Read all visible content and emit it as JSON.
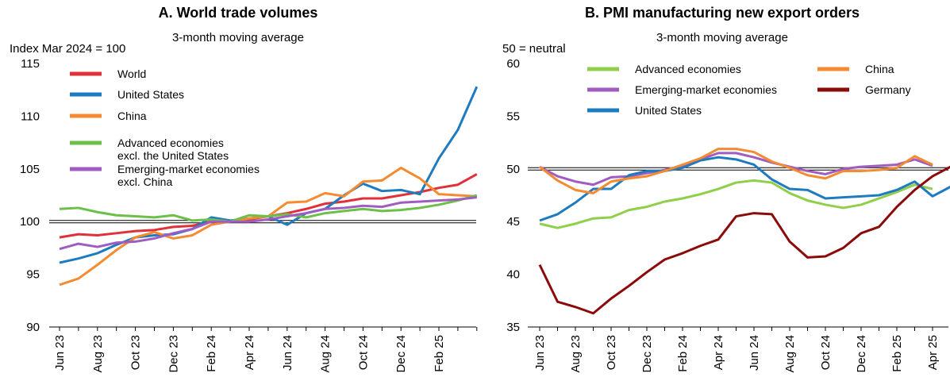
{
  "chart_data": [
    {
      "type": "line",
      "title": "A. World trade volumes",
      "subtitle": "3-month moving average",
      "y_label": "Index Mar 2024 = 100",
      "categories": [
        "Jun 23",
        null,
        "Aug 23",
        null,
        "Oct 23",
        null,
        "Dec 23",
        null,
        "Feb 24",
        null,
        "Apr 24",
        null,
        "Jun 24",
        null,
        "Aug 24",
        null,
        "Oct 24",
        null,
        "Dec 24",
        null,
        "Feb 25",
        null,
        null
      ],
      "ylim": [
        90,
        115
      ],
      "yticks": [
        90,
        95,
        100,
        105,
        110,
        115
      ],
      "reference_line": 100,
      "series": [
        {
          "name": "World",
          "color": "#e0303a",
          "values": [
            98.5,
            98.8,
            98.7,
            98.9,
            99.1,
            99.2,
            99.5,
            99.6,
            100,
            100,
            100.2,
            100.5,
            100.8,
            101.2,
            101.7,
            101.9,
            102.2,
            102.2,
            102.5,
            102.8,
            103.2,
            103.5,
            104.5
          ]
        },
        {
          "name": "United States",
          "color": "#1f7bbf",
          "values": [
            96.1,
            96.5,
            97,
            97.8,
            98.5,
            98.7,
            98.8,
            99.3,
            100.4,
            100.1,
            100.3,
            100.5,
            99.7,
            100.8,
            101.2,
            102.5,
            103.6,
            102.9,
            103,
            102.6,
            106,
            108.7,
            112.8
          ]
        },
        {
          "name": "China",
          "color": "#f58a30",
          "values": [
            94,
            94.6,
            95.9,
            97.3,
            98.5,
            99,
            98.4,
            98.7,
            99.7,
            100,
            100.3,
            100.5,
            101.8,
            101.9,
            102.7,
            102.4,
            103.8,
            103.9,
            105.1,
            104.1,
            102.6,
            102.5,
            102.4
          ]
        },
        {
          "name": "Advanced economies\n excl. the United States",
          "color": "#6cc04a",
          "values": [
            101.2,
            101.3,
            100.9,
            100.6,
            100.5,
            100.4,
            100.6,
            100.1,
            100.2,
            100,
            100.6,
            100.5,
            100.7,
            100.4,
            100.8,
            101,
            101.2,
            101,
            101.1,
            101.3,
            101.6,
            102,
            102.5
          ]
        },
        {
          "name": "Emerging-market economies\n excl. China",
          "color": "#a05cc0",
          "values": [
            97.4,
            97.9,
            97.6,
            98,
            98.1,
            98.4,
            98.9,
            99.3,
            100,
            100,
            100,
            100.2,
            100.5,
            100.8,
            101.2,
            101.3,
            101.5,
            101.4,
            101.8,
            101.9,
            102,
            102.1,
            102.3
          ]
        }
      ]
    },
    {
      "type": "line",
      "title": "B. PMI manufacturing new export orders",
      "subtitle": "3-month moving average",
      "y_label": "50 = neutral",
      "categories": [
        "Jun 23",
        null,
        "Aug 23",
        null,
        "Oct 23",
        null,
        "Dec 23",
        null,
        "Feb 24",
        null,
        "Apr 24",
        null,
        "Jun 24",
        null,
        "Aug 24",
        null,
        "Oct 24",
        null,
        "Dec 24",
        null,
        "Feb 25",
        null,
        "Apr 25",
        null
      ],
      "ylim": [
        35,
        60
      ],
      "yticks": [
        35,
        40,
        45,
        50,
        55,
        60
      ],
      "reference_line": 50,
      "series": [
        {
          "name": "Advanced economies",
          "color": "#8fcf4a",
          "values": [
            44.8,
            44.4,
            44.8,
            45.3,
            45.4,
            46.1,
            46.4,
            46.9,
            47.2,
            47.6,
            48.1,
            48.7,
            48.9,
            48.7,
            47.7,
            47.0,
            46.6,
            46.3,
            46.6,
            47.2,
            47.8,
            48.5,
            48.1,
            null
          ]
        },
        {
          "name": "Emerging-market economies",
          "color": "#a05cc0",
          "values": [
            50.2,
            49.3,
            48.8,
            48.5,
            49.2,
            49.3,
            49.6,
            49.9,
            50.3,
            50.9,
            51.5,
            51.5,
            51.1,
            50.6,
            50.2,
            49.8,
            49.5,
            50.0,
            50.2,
            50.3,
            50.4,
            50.9,
            50.3,
            null
          ]
        },
        {
          "name": "United States",
          "color": "#1f7bbf",
          "values": [
            45.1,
            45.7,
            46.8,
            48.1,
            48.1,
            49.4,
            49.8,
            49.8,
            50.1,
            50.8,
            51.1,
            50.9,
            50.4,
            49.0,
            48.1,
            48.0,
            47.2,
            47.3,
            47.4,
            47.5,
            48.0,
            48.8,
            47.4,
            48.3
          ]
        },
        {
          "name": "China",
          "color": "#f58a30",
          "values": [
            50.2,
            48.9,
            48.0,
            47.7,
            48.8,
            49.1,
            49.3,
            49.8,
            50.4,
            51.0,
            51.9,
            51.9,
            51.6,
            50.7,
            50.1,
            49.4,
            49.1,
            49.8,
            49.8,
            49.9,
            50.1,
            51.2,
            50.4,
            null
          ]
        },
        {
          "name": "Germany",
          "color": "#8b0a0a",
          "values": [
            40.9,
            37.4,
            36.9,
            36.3,
            37.7,
            38.9,
            40.2,
            41.4,
            42.0,
            42.7,
            43.3,
            45.5,
            45.8,
            45.7,
            43.1,
            41.6,
            41.7,
            42.5,
            43.9,
            44.5,
            46.4,
            48.0,
            49.3,
            50.2
          ]
        }
      ]
    }
  ]
}
